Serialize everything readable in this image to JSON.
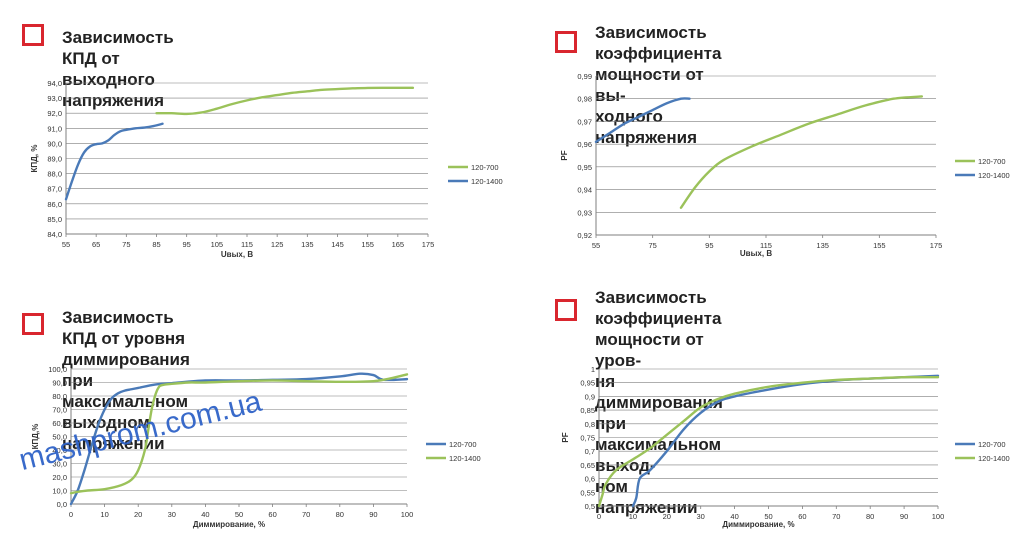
{
  "colors": {
    "blue": "#4a7ab8",
    "green": "#9bc25a",
    "grid": "#7f7f7f",
    "axis": "#7f7f7f",
    "marker": "#d9262e",
    "watermark": "#2f63c8"
  },
  "panels": [
    {
      "title_lines": [
        "Зависимость КПД от выходного напряжения"
      ]
    },
    {
      "title_lines": [
        "Зависимость коэффициента мощности от вы-",
        "ходного напряжения"
      ]
    },
    {
      "title_lines": [
        "Зависимость КПД от уровня диммирования при",
        "максимальном выходном напряжении"
      ]
    },
    {
      "title_lines": [
        "Зависимость коэффициента мощности от уров-",
        "ня диммирования при максимальном выход-",
        "ном напряжении"
      ]
    }
  ],
  "watermark": "mashprom.com.ua",
  "chart_data": [
    {
      "type": "line",
      "xlabel": "Uвых, В",
      "ylabel": "КПД, %",
      "xlim": [
        55,
        175
      ],
      "ylim": [
        84.0,
        94.0
      ],
      "xticks": [
        "55",
        "65",
        "75",
        "85",
        "95",
        "105",
        "115",
        "125",
        "135",
        "145",
        "155",
        "165",
        "175"
      ],
      "yticks": [
        "84,0",
        "85,0",
        "86,0",
        "87,0",
        "88,0",
        "89,0",
        "90,0",
        "91,0",
        "92,0",
        "93,0",
        "94,0"
      ],
      "grid": true,
      "legend": "right",
      "series": [
        {
          "name": "120-700",
          "color": "green",
          "x": [
            85,
            90,
            95,
            100,
            105,
            110,
            115,
            120,
            125,
            130,
            135,
            140,
            145,
            150,
            155,
            160,
            165,
            170
          ],
          "y": [
            92.0,
            92.0,
            91.95,
            92.05,
            92.3,
            92.6,
            92.85,
            93.05,
            93.2,
            93.35,
            93.45,
            93.55,
            93.6,
            93.65,
            93.67,
            93.68,
            93.68,
            93.68
          ]
        },
        {
          "name": "120-1400",
          "color": "blue",
          "x": [
            55,
            57,
            59,
            61,
            63,
            65,
            67,
            69,
            71,
            73,
            75,
            78,
            81,
            84,
            87
          ],
          "y": [
            86.3,
            87.5,
            88.6,
            89.4,
            89.8,
            89.95,
            90.0,
            90.2,
            90.55,
            90.8,
            90.9,
            91.0,
            91.05,
            91.15,
            91.3
          ]
        }
      ]
    },
    {
      "type": "line",
      "xlabel": "Uвых, В",
      "ylabel": "PF",
      "xlim": [
        55,
        175
      ],
      "ylim": [
        0.92,
        0.99
      ],
      "xticks": [
        "55",
        "75",
        "95",
        "115",
        "135",
        "155",
        "175"
      ],
      "yticks": [
        "0,92",
        "0,93",
        "0,94",
        "0,95",
        "0,96",
        "0,97",
        "0,98",
        "0,99"
      ],
      "grid": true,
      "legend": "right",
      "series": [
        {
          "name": "120-700",
          "color": "green",
          "x": [
            85,
            90,
            95,
            100,
            110,
            120,
            130,
            140,
            150,
            160,
            170
          ],
          "y": [
            0.932,
            0.941,
            0.948,
            0.953,
            0.959,
            0.964,
            0.969,
            0.973,
            0.977,
            0.98,
            0.981
          ]
        },
        {
          "name": "120-1400",
          "color": "blue",
          "x": [
            55,
            60,
            65,
            70,
            75,
            80,
            85,
            88
          ],
          "y": [
            0.961,
            0.965,
            0.969,
            0.972,
            0.975,
            0.978,
            0.98,
            0.98
          ]
        }
      ]
    },
    {
      "type": "line",
      "xlabel": "Диммирование, %",
      "ylabel": "КПД,%",
      "xlim": [
        0,
        100
      ],
      "ylim": [
        0,
        100
      ],
      "xticks": [
        "0",
        "10",
        "20",
        "30",
        "40",
        "50",
        "60",
        "70",
        "80",
        "90",
        "100"
      ],
      "yticks": [
        "0,0",
        "10,0",
        "20,0",
        "30,0",
        "40,0",
        "50,0",
        "60,0",
        "70,0",
        "80,0",
        "90,0",
        "100,0"
      ],
      "grid": true,
      "legend": "right",
      "series": [
        {
          "name": "120-700",
          "color": "blue",
          "x": [
            0,
            2,
            4,
            6,
            8,
            10,
            12,
            14,
            16,
            18,
            20,
            25,
            30,
            40,
            50,
            60,
            70,
            80,
            86,
            90,
            93,
            100
          ],
          "y": [
            0,
            10,
            25,
            42,
            58,
            70,
            78,
            82,
            84,
            85,
            86,
            88.5,
            89.5,
            91.5,
            91.5,
            92,
            92.5,
            94.5,
            96.5,
            95.5,
            92,
            92.5
          ]
        },
        {
          "name": "120-1400",
          "color": "green",
          "x": [
            0,
            2,
            5,
            10,
            15,
            18,
            20,
            22,
            23,
            24,
            25,
            26,
            27,
            30,
            35,
            40,
            50,
            60,
            70,
            80,
            90,
            95,
            100
          ],
          "y": [
            8,
            9,
            10,
            11,
            14,
            18,
            25,
            40,
            55,
            70,
            80,
            86,
            88,
            89,
            90,
            90,
            91,
            91.5,
            91,
            90.5,
            91,
            93,
            96
          ]
        }
      ]
    },
    {
      "type": "line",
      "xlabel": "Диммирование, %",
      "ylabel": "PF",
      "xlim": [
        0,
        100
      ],
      "ylim": [
        0.5,
        1.0
      ],
      "xticks": [
        "0",
        "10",
        "20",
        "30",
        "40",
        "50",
        "60",
        "70",
        "80",
        "90",
        "100"
      ],
      "yticks": [
        "0,5",
        "0,55",
        "0,6",
        "0,65",
        "0,7",
        "0,75",
        "0,8",
        "0,85",
        "0,9",
        "0,95",
        "1"
      ],
      "grid": true,
      "legend": "right",
      "series": [
        {
          "name": "120-700",
          "color": "blue",
          "x": [
            10,
            11,
            12,
            15,
            20,
            25,
            30,
            35,
            40,
            50,
            60,
            70,
            80,
            90,
            100
          ],
          "y": [
            0.5,
            0.53,
            0.6,
            0.63,
            0.7,
            0.78,
            0.84,
            0.88,
            0.9,
            0.925,
            0.945,
            0.958,
            0.965,
            0.97,
            0.975
          ]
        },
        {
          "name": "120-1400",
          "color": "green",
          "x": [
            0,
            1,
            2,
            5,
            10,
            15,
            20,
            25,
            30,
            35,
            40,
            50,
            60,
            70,
            80,
            90,
            100
          ],
          "y": [
            0.5,
            0.54,
            0.58,
            0.63,
            0.67,
            0.71,
            0.76,
            0.81,
            0.86,
            0.89,
            0.91,
            0.935,
            0.95,
            0.96,
            0.965,
            0.97,
            0.97
          ]
        }
      ]
    }
  ]
}
